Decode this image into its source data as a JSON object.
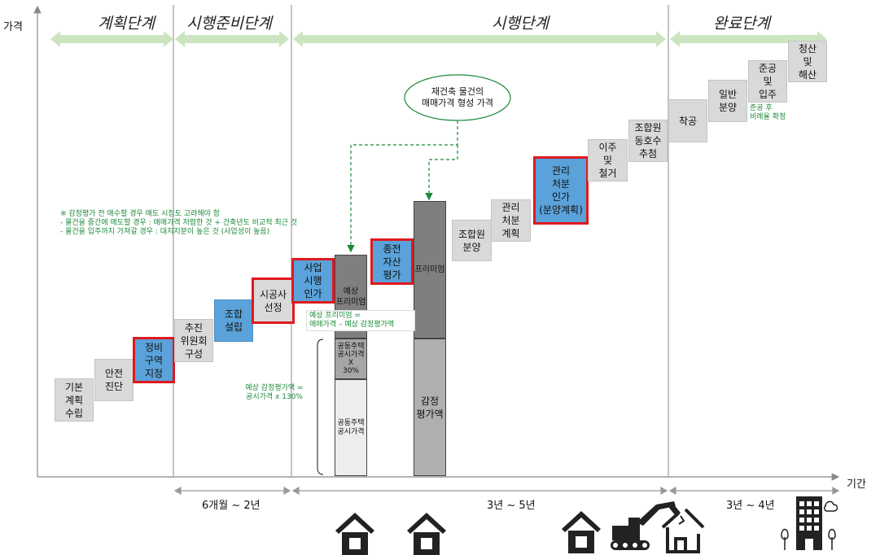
{
  "axis": {
    "y_label": "가격",
    "x_label": "기간"
  },
  "stages": [
    "계획단계",
    "시행준비단계",
    "시행단계",
    "완료단계"
  ],
  "steps": [
    {
      "label": "기본\n계획\n수립",
      "style": "grey",
      "highlight": false
    },
    {
      "label": "안전\n진단",
      "style": "grey",
      "highlight": false
    },
    {
      "label": "정비\n구역\n지정",
      "style": "blue",
      "highlight": true
    },
    {
      "label": "추진\n위원회\n구성",
      "style": "grey",
      "highlight": false
    },
    {
      "label": "조합\n설립",
      "style": "blue",
      "highlight": false
    },
    {
      "label": "시공사\n선정",
      "style": "grey",
      "highlight": true
    },
    {
      "label": "사업\n시행\n인가",
      "style": "blue",
      "highlight": true
    },
    {
      "label": "종전\n자산\n평가",
      "style": "blue",
      "highlight": true
    },
    {
      "label": "조합원\n분양",
      "style": "grey",
      "highlight": false
    },
    {
      "label": "관리\n처분\n계획",
      "style": "grey",
      "highlight": false
    },
    {
      "label": "관리\n처분\n인가\n(분양계획)",
      "style": "blue",
      "highlight": true
    },
    {
      "label": "이주\n및\n철거",
      "style": "grey",
      "highlight": false
    },
    {
      "label": "조합원\n동호수\n추첨",
      "style": "grey",
      "highlight": false
    },
    {
      "label": "착공",
      "style": "grey",
      "highlight": false
    },
    {
      "label": "일반\n분양",
      "style": "grey",
      "highlight": false
    },
    {
      "label": "준공\n및\n입주",
      "style": "grey",
      "highlight": false
    },
    {
      "label": "청산\n및\n해산",
      "style": "grey",
      "highlight": false
    }
  ],
  "bubble": "재건축 물건의\n매매가격 형성 가격",
  "note": "※ 감정평가 전 매수할 경우 매도 시점도 고려해야 함\n  - 물건을 중간에 매도할 경우 : 매매가격 저렴한 것 + 건축년도 비교적 최근 것\n  - 물건을 입주까지 가져갈 경우 : 대지지분이 높은 것 (사업성이 높음)",
  "premium_formula": "예상 프리미엄 =\n매매가격 – 예상 감정평가액",
  "appraisal_formula": "예상 감정평가액 =\n공시가격 x 130%",
  "completion_note": "준공 후\n비례율 확정",
  "bar1": {
    "premium": "예상\n프리미엄",
    "mid": "공동주택\n공시가격\nX\n30%",
    "bottom": "공동주택\n공시가격"
  },
  "bar2": {
    "premium": "프리미엄",
    "bottom": "감정\n평가액"
  },
  "periods": [
    "6개월 ~ 2년",
    "3년 ~ 5년",
    "3년 ~ 4년"
  ],
  "colors": {
    "arrow_green": "#cce5c0",
    "note_green": "#1a8a3a",
    "blue_box": "#5aa2d9",
    "grey_box": "#d9d9d9",
    "highlight_red": "#e0191f"
  },
  "icons": [
    "house-icon",
    "house-icon",
    "house-icon",
    "excavator-icon",
    "demolished-house-icon",
    "apartment-building-icon"
  ]
}
